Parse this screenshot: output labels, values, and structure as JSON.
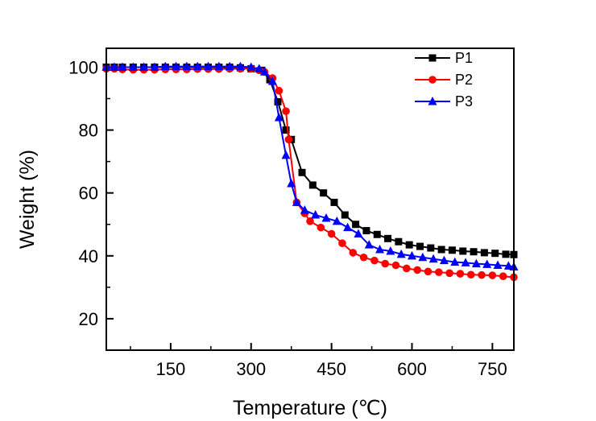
{
  "chart_data": {
    "type": "line",
    "xlabel": "Temperature (℃)",
    "ylabel": "Weight (%)",
    "xlim": [
      30,
      790
    ],
    "ylim": [
      10,
      106
    ],
    "xticks": [
      150,
      300,
      450,
      600,
      750
    ],
    "yticks": [
      20,
      40,
      60,
      80,
      100
    ],
    "legend_position": "top-right",
    "series": [
      {
        "name": "P1",
        "color": "#000000",
        "marker": "square",
        "x": [
          30,
          45,
          60,
          80,
          100,
          120,
          140,
          160,
          180,
          200,
          220,
          240,
          260,
          280,
          300,
          320,
          335,
          350,
          365,
          375,
          395,
          415,
          435,
          455,
          475,
          495,
          515,
          535,
          555,
          575,
          595,
          615,
          635,
          655,
          675,
          695,
          715,
          735,
          755,
          775,
          790
        ],
        "y": [
          100,
          100,
          100,
          100,
          100,
          100,
          100,
          100,
          100,
          100,
          100,
          100,
          100,
          99.8,
          99.5,
          99,
          96,
          89,
          80,
          77,
          66.5,
          62.5,
          60,
          57,
          53,
          50,
          48,
          46.8,
          45.5,
          44.5,
          43.5,
          43,
          42.5,
          42,
          41.8,
          41.5,
          41.3,
          41,
          40.8,
          40.5,
          40.4
        ]
      },
      {
        "name": "P2",
        "color": "#ff0000",
        "marker": "circle",
        "x": [
          30,
          45,
          60,
          80,
          100,
          120,
          140,
          160,
          180,
          200,
          220,
          240,
          260,
          280,
          300,
          315,
          325,
          340,
          352,
          365,
          370,
          385,
          400,
          410,
          430,
          450,
          470,
          490,
          510,
          530,
          550,
          570,
          590,
          610,
          630,
          650,
          670,
          690,
          710,
          730,
          750,
          770,
          790
        ],
        "y": [
          99.5,
          99.5,
          99.3,
          99.2,
          99.2,
          99.2,
          99.3,
          99.3,
          99.3,
          99.4,
          99.4,
          99.4,
          99.5,
          99.5,
          99.5,
          99,
          98.5,
          96.5,
          92.5,
          86,
          77,
          57,
          53.5,
          51,
          49,
          47,
          44,
          41,
          39.5,
          38.5,
          37.5,
          37,
          36,
          35.5,
          35,
          34.8,
          34.5,
          34.3,
          34,
          33.9,
          33.8,
          33.5,
          33.2
        ]
      },
      {
        "name": "P3",
        "color": "#0000ff",
        "marker": "triangle",
        "x": [
          30,
          45,
          60,
          80,
          100,
          120,
          140,
          160,
          180,
          200,
          220,
          240,
          260,
          280,
          300,
          315,
          325,
          340,
          352,
          365,
          375,
          385,
          400,
          420,
          440,
          460,
          480,
          500,
          520,
          540,
          560,
          580,
          600,
          620,
          640,
          660,
          680,
          700,
          720,
          740,
          760,
          780,
          790
        ],
        "y": [
          100,
          100,
          100,
          100,
          100,
          100,
          100.2,
          100.2,
          100.2,
          100.2,
          100.2,
          100.2,
          100.2,
          100.2,
          100,
          99.5,
          98.5,
          95.5,
          84,
          72,
          63,
          57,
          54.5,
          53,
          52,
          51,
          49,
          47,
          43.5,
          42,
          41.5,
          40.5,
          40,
          39.5,
          39,
          38.5,
          38,
          37.8,
          37.5,
          37.3,
          37,
          36.8,
          36.5
        ]
      }
    ]
  }
}
